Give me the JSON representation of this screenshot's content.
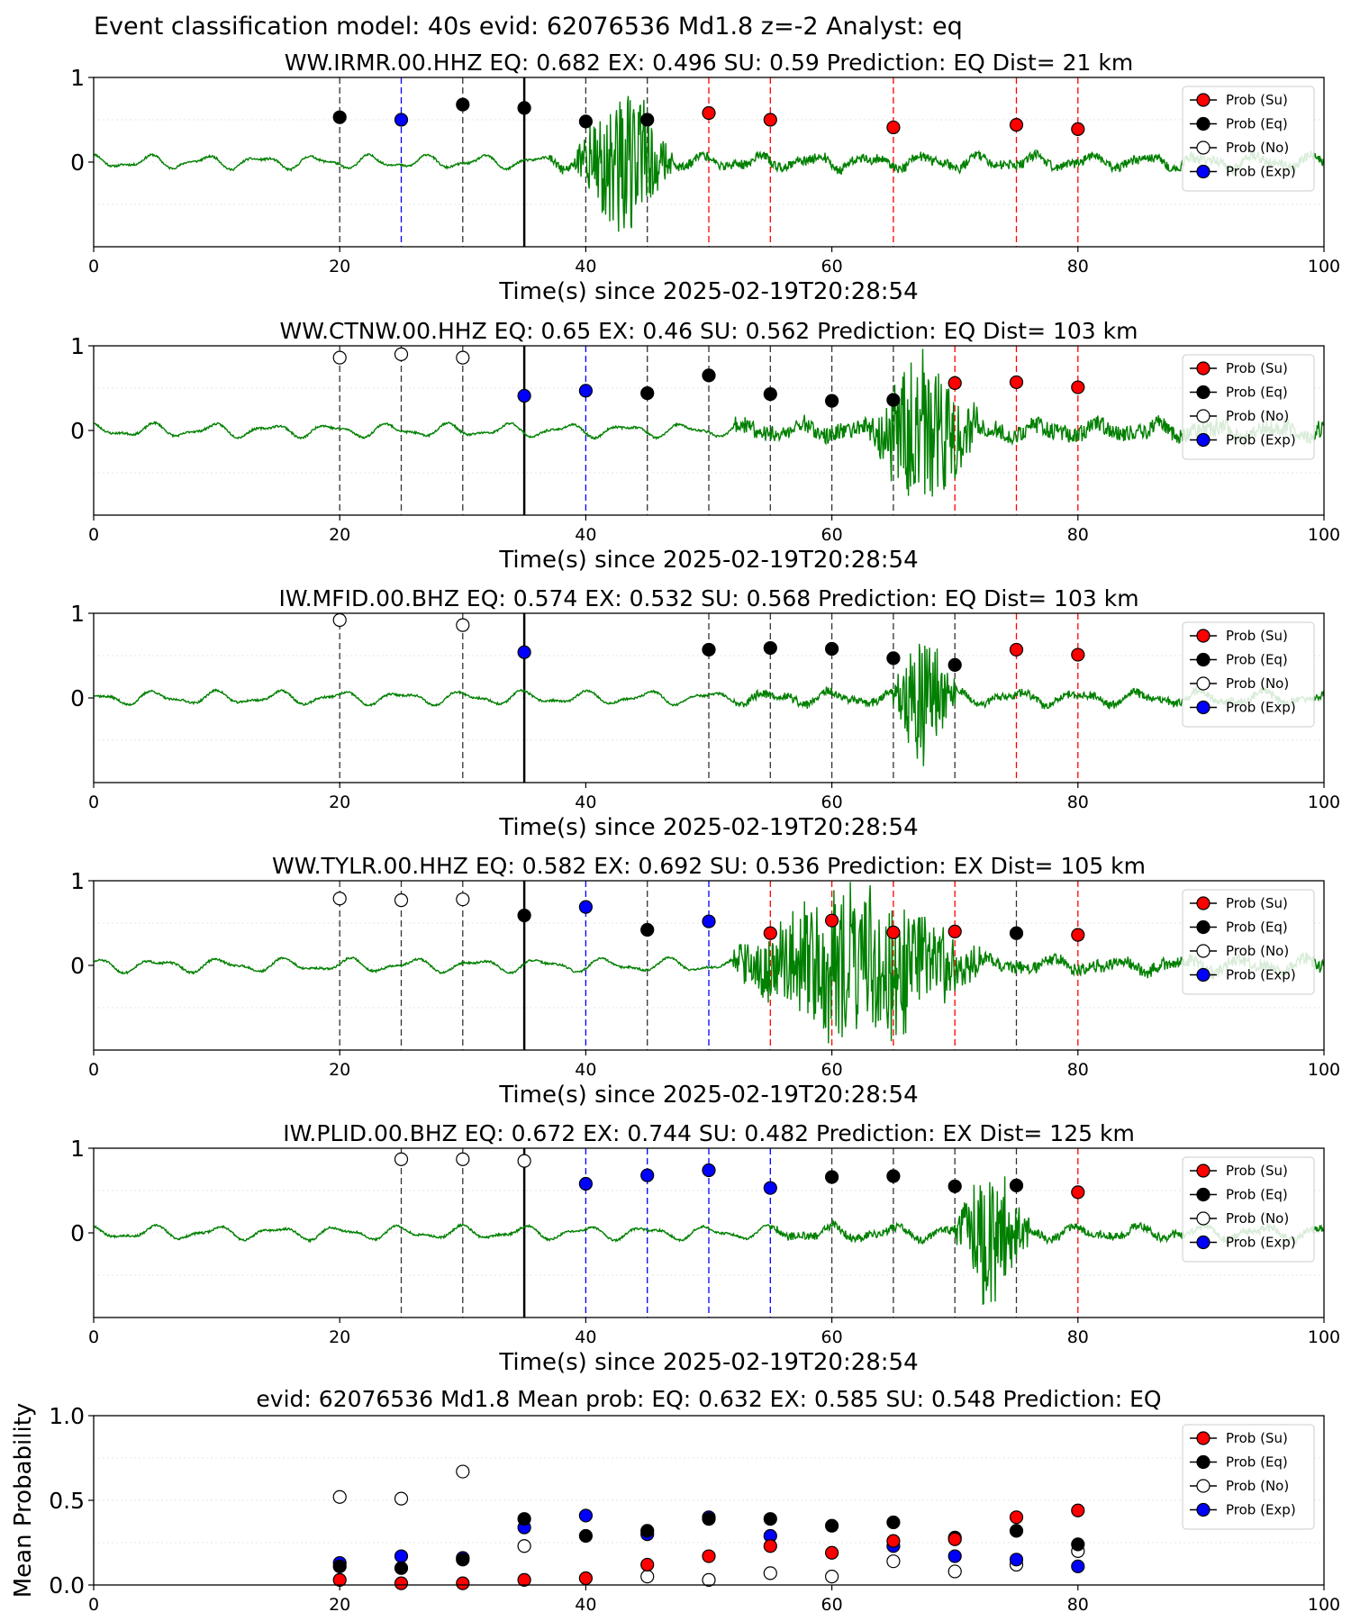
{
  "title": "Event classification model: 40s evid: 62076536 Md1.8 z=-2 Analyst: eq",
  "legend": [
    "Prob (Su)",
    "Prob (Eq)",
    "Prob (No)",
    "Prob (Exp)"
  ],
  "colors": {
    "waveform": "#008000",
    "su": "#ff0000",
    "eq": "#000000",
    "no": "#ffffff",
    "exp": "#0000ff"
  },
  "chart_data": [
    {
      "type": "scatter",
      "title": "WW.IRMR.00.HHZ   EQ: 0.682  EX: 0.496  SU: 0.59   Prediction: EQ    Dist= 21 km",
      "xlabel": "Time(s) since 2025-02-19T20:28:54",
      "xlim": [
        0,
        100
      ],
      "ylim": [
        -1,
        1
      ],
      "xticks": [
        "0",
        "20",
        "40",
        "60",
        "80",
        "100"
      ],
      "yticks": [
        "1",
        "0"
      ],
      "pick_time": 35,
      "waveform": {
        "onset": 37,
        "burst_start": 39,
        "burst_end": 47,
        "burst_amp": 0.85,
        "noise_amp": 0.12,
        "period": 4.5,
        "seed": 11
      },
      "points": [
        {
          "t": 20,
          "p": 0.53,
          "class": "eq"
        },
        {
          "t": 25,
          "p": 0.5,
          "class": "exp"
        },
        {
          "t": 30,
          "p": 0.68,
          "class": "eq"
        },
        {
          "t": 35,
          "p": 0.64,
          "class": "eq"
        },
        {
          "t": 40,
          "p": 0.48,
          "class": "eq"
        },
        {
          "t": 45,
          "p": 0.5,
          "class": "eq"
        },
        {
          "t": 50,
          "p": 0.58,
          "class": "su"
        },
        {
          "t": 55,
          "p": 0.5,
          "class": "su"
        },
        {
          "t": 65,
          "p": 0.41,
          "class": "su"
        },
        {
          "t": 75,
          "p": 0.44,
          "class": "su"
        },
        {
          "t": 80,
          "p": 0.39,
          "class": "su"
        }
      ]
    },
    {
      "type": "scatter",
      "title": "WW.CTNW.00.HHZ   EQ: 0.65  EX: 0.46  SU: 0.562   Prediction: EQ    Dist= 103 km",
      "xlabel": "Time(s) since 2025-02-19T20:28:54",
      "xlim": [
        0,
        100
      ],
      "ylim": [
        -1,
        1
      ],
      "xticks": [
        "0",
        "20",
        "40",
        "60",
        "80",
        "100"
      ],
      "yticks": [
        "1",
        "0"
      ],
      "pick_time": 35,
      "waveform": {
        "onset": 52,
        "burst_start": 63,
        "burst_end": 72,
        "burst_amp": 0.9,
        "noise_amp": 0.22,
        "period": 4.8,
        "seed": 23
      },
      "points": [
        {
          "t": 20,
          "p": 0.86,
          "class": "no"
        },
        {
          "t": 25,
          "p": 0.9,
          "class": "no"
        },
        {
          "t": 30,
          "p": 0.86,
          "class": "no"
        },
        {
          "t": 35,
          "p": 0.41,
          "class": "exp"
        },
        {
          "t": 40,
          "p": 0.47,
          "class": "exp"
        },
        {
          "t": 45,
          "p": 0.44,
          "class": "eq"
        },
        {
          "t": 50,
          "p": 0.65,
          "class": "eq"
        },
        {
          "t": 55,
          "p": 0.43,
          "class": "eq"
        },
        {
          "t": 60,
          "p": 0.35,
          "class": "eq"
        },
        {
          "t": 65,
          "p": 0.36,
          "class": "eq"
        },
        {
          "t": 70,
          "p": 0.56,
          "class": "su"
        },
        {
          "t": 75,
          "p": 0.57,
          "class": "su"
        },
        {
          "t": 80,
          "p": 0.51,
          "class": "su"
        }
      ]
    },
    {
      "type": "scatter",
      "title": "IW.MFID.00.BHZ   EQ: 0.574  EX: 0.532  SU: 0.568   Prediction: EQ    Dist= 103 km",
      "xlabel": "Time(s) since 2025-02-19T20:28:54",
      "xlim": [
        0,
        100
      ],
      "ylim": [
        -1,
        1
      ],
      "xticks": [
        "0",
        "20",
        "40",
        "60",
        "80",
        "100"
      ],
      "yticks": [
        "1",
        "0"
      ],
      "pick_time": 35,
      "waveform": {
        "onset": 52,
        "burst_start": 65,
        "burst_end": 70,
        "burst_amp": 0.85,
        "noise_amp": 0.1,
        "period": 5.0,
        "seed": 37
      },
      "points": [
        {
          "t": 20,
          "p": 0.92,
          "class": "no"
        },
        {
          "t": 30,
          "p": 0.86,
          "class": "no"
        },
        {
          "t": 35,
          "p": 0.54,
          "class": "exp"
        },
        {
          "t": 50,
          "p": 0.57,
          "class": "eq"
        },
        {
          "t": 55,
          "p": 0.59,
          "class": "eq"
        },
        {
          "t": 60,
          "p": 0.58,
          "class": "eq"
        },
        {
          "t": 65,
          "p": 0.47,
          "class": "eq"
        },
        {
          "t": 70,
          "p": 0.39,
          "class": "eq"
        },
        {
          "t": 75,
          "p": 0.57,
          "class": "su"
        },
        {
          "t": 80,
          "p": 0.51,
          "class": "su"
        }
      ]
    },
    {
      "type": "scatter",
      "title": "WW.TYLR.00.HHZ   EQ: 0.582  EX: 0.692  SU: 0.536   Prediction: EX    Dist= 105 km",
      "xlabel": "Time(s) since 2025-02-19T20:28:54",
      "xlim": [
        0,
        100
      ],
      "ylim": [
        -1,
        1
      ],
      "xticks": [
        "0",
        "20",
        "40",
        "60",
        "80",
        "100"
      ],
      "yticks": [
        "1",
        "0"
      ],
      "pick_time": 35,
      "waveform": {
        "onset": 52,
        "burst_start": 52,
        "burst_end": 72,
        "burst_amp": 0.95,
        "noise_amp": 0.16,
        "period": 5.2,
        "seed": 51
      },
      "points": [
        {
          "t": 20,
          "p": 0.79,
          "class": "no"
        },
        {
          "t": 25,
          "p": 0.77,
          "class": "no"
        },
        {
          "t": 30,
          "p": 0.78,
          "class": "no"
        },
        {
          "t": 35,
          "p": 0.59,
          "class": "eq"
        },
        {
          "t": 40,
          "p": 0.69,
          "class": "exp"
        },
        {
          "t": 45,
          "p": 0.42,
          "class": "eq"
        },
        {
          "t": 50,
          "p": 0.52,
          "class": "exp"
        },
        {
          "t": 55,
          "p": 0.38,
          "class": "su"
        },
        {
          "t": 60,
          "p": 0.53,
          "class": "su"
        },
        {
          "t": 65,
          "p": 0.39,
          "class": "su"
        },
        {
          "t": 70,
          "p": 0.4,
          "class": "su"
        },
        {
          "t": 75,
          "p": 0.38,
          "class": "eq"
        },
        {
          "t": 80,
          "p": 0.36,
          "class": "su"
        }
      ]
    },
    {
      "type": "scatter",
      "title": "IW.PLID.00.BHZ   EQ: 0.672  EX: 0.744  SU: 0.482   Prediction: EX    Dist= 125 km",
      "xlabel": "Time(s) since 2025-02-19T20:28:54",
      "xlim": [
        0,
        100
      ],
      "ylim": [
        -1,
        1
      ],
      "xticks": [
        "0",
        "20",
        "40",
        "60",
        "80",
        "100"
      ],
      "yticks": [
        "1",
        "0"
      ],
      "pick_time": 35,
      "waveform": {
        "onset": 55,
        "burst_start": 70,
        "burst_end": 76,
        "burst_amp": 0.85,
        "noise_amp": 0.1,
        "period": 5.0,
        "seed": 67
      },
      "points": [
        {
          "t": 25,
          "p": 0.87,
          "class": "no"
        },
        {
          "t": 30,
          "p": 0.87,
          "class": "no"
        },
        {
          "t": 35,
          "p": 0.85,
          "class": "no"
        },
        {
          "t": 40,
          "p": 0.58,
          "class": "exp"
        },
        {
          "t": 45,
          "p": 0.68,
          "class": "exp"
        },
        {
          "t": 50,
          "p": 0.74,
          "class": "exp"
        },
        {
          "t": 55,
          "p": 0.53,
          "class": "exp"
        },
        {
          "t": 60,
          "p": 0.66,
          "class": "eq"
        },
        {
          "t": 65,
          "p": 0.67,
          "class": "eq"
        },
        {
          "t": 70,
          "p": 0.55,
          "class": "eq"
        },
        {
          "t": 75,
          "p": 0.56,
          "class": "eq"
        },
        {
          "t": 80,
          "p": 0.48,
          "class": "su"
        }
      ]
    },
    {
      "type": "scatter",
      "title": "evid: 62076536  Md1.8   Mean prob:   EQ: 0.632  EX: 0.585  SU: 0.548   Prediction: EQ",
      "ylabel": "Mean Probability",
      "xlim": [
        0,
        100
      ],
      "ylim": [
        0,
        1
      ],
      "xticks": [
        "0",
        "20",
        "40",
        "60",
        "80",
        "100"
      ],
      "yticks": [
        "1.0",
        "0.5",
        "0.0"
      ],
      "x": [
        20,
        25,
        30,
        35,
        40,
        45,
        50,
        55,
        60,
        65,
        70,
        75,
        80
      ],
      "series": [
        {
          "name": "Prob (Su)",
          "class": "su",
          "values": [
            0.03,
            0.01,
            0.01,
            0.03,
            0.04,
            0.12,
            0.17,
            0.23,
            0.19,
            0.26,
            0.27,
            0.4,
            0.44
          ]
        },
        {
          "name": "Prob (Eq)",
          "class": "eq",
          "values": [
            0.11,
            0.1,
            0.15,
            0.39,
            0.29,
            0.32,
            0.39,
            0.39,
            0.35,
            0.37,
            0.28,
            0.32,
            0.24
          ]
        },
        {
          "name": "Prob (No)",
          "class": "no",
          "values": [
            0.52,
            0.51,
            0.67,
            0.23,
            null,
            0.05,
            0.03,
            0.07,
            0.05,
            0.14,
            0.08,
            0.12,
            0.2
          ]
        },
        {
          "name": "Prob (Exp)",
          "class": "exp",
          "values": [
            0.13,
            0.17,
            0.16,
            0.34,
            0.41,
            0.3,
            0.4,
            0.29,
            null,
            0.23,
            0.17,
            0.15,
            0.11
          ]
        }
      ]
    }
  ]
}
